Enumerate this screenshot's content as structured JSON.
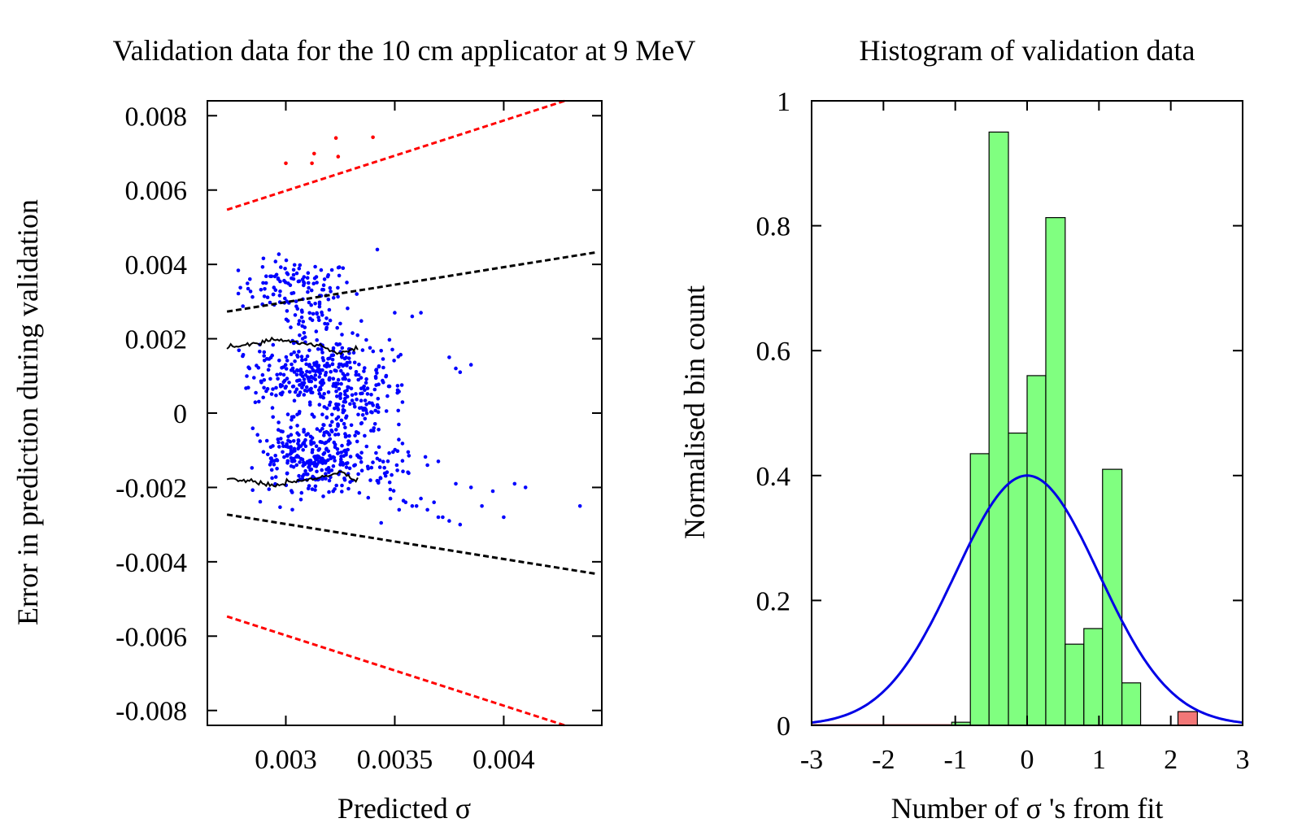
{
  "chart_data": [
    {
      "type": "scatter",
      "title": "Validation data for the 10 cm applicator at 9 MeV",
      "xlabel": "Predicted σ",
      "ylabel": "Error in prediction during validation",
      "xlim": [
        0.00264,
        0.00445
      ],
      "ylim": [
        -0.0084,
        0.0084
      ],
      "xticks": [
        {
          "value": 0.003,
          "label": "0.003"
        },
        {
          "value": 0.0035,
          "label": "0.0035"
        },
        {
          "value": 0.004,
          "label": "0.004"
        }
      ],
      "yticks": [
        {
          "value": 0.008,
          "label": "0.008"
        },
        {
          "value": 0.006,
          "label": "0.006"
        },
        {
          "value": 0.004,
          "label": "0.004"
        },
        {
          "value": 0.002,
          "label": "0.002"
        },
        {
          "value": 0,
          "label": "0"
        },
        {
          "value": -0.002,
          "label": "-0.002"
        },
        {
          "value": -0.004,
          "label": "-0.004"
        },
        {
          "value": -0.006,
          "label": "-0.006"
        },
        {
          "value": -0.008,
          "label": "-0.008"
        }
      ],
      "grid": false,
      "legend": "none",
      "colors": {
        "inliers": "#0000ff",
        "outliers": "#ff0000",
        "one_sigma_bounds": "#000000",
        "two_sigma_bounds": "#ff0000"
      },
      "bound_lines": [
        {
          "style": "dashed",
          "color": "#000000",
          "x": [
            0.00273,
            0.00443
          ],
          "y": [
            0.00273,
            0.00433
          ]
        },
        {
          "style": "dashed",
          "color": "#000000",
          "x": [
            0.00273,
            0.00443
          ],
          "y": [
            -0.00273,
            -0.00433
          ]
        },
        {
          "style": "dashed",
          "color": "#ff0000",
          "x": [
            0.00273,
            0.00428
          ],
          "y": [
            0.00547,
            0.0084
          ]
        },
        {
          "style": "dashed",
          "color": "#ff0000",
          "x": [
            0.00273,
            0.00428
          ],
          "y": [
            -0.00547,
            -0.0084
          ]
        }
      ],
      "running_rms": {
        "color": "#000000",
        "x": [
          0.00273,
          0.00285,
          0.00295,
          0.00305,
          0.00315,
          0.00325,
          0.00333
        ],
        "upper": [
          0.00178,
          0.00185,
          0.002,
          0.0019,
          0.00183,
          0.00158,
          0.00178
        ],
        "lower": [
          -0.00175,
          -0.00185,
          -0.00195,
          -0.00183,
          -0.00175,
          -0.0016,
          -0.0018
        ]
      },
      "outlier_points": {
        "x": [
          0.003,
          0.00312,
          0.00313,
          0.00323,
          0.00324,
          0.0034
        ],
        "y": [
          0.00672,
          0.00672,
          0.00698,
          0.0074,
          0.0069,
          0.00742
        ]
      },
      "scatter_clusters": [
        {
          "x_center": 0.00305,
          "x_spread": 0.00013,
          "y_center": 0.0034,
          "y_spread": 0.00035,
          "count": 110
        },
        {
          "x_center": 0.0031,
          "x_spread": 0.00013,
          "y_center": 0.00105,
          "y_spread": 0.00045,
          "count": 260
        },
        {
          "x_center": 0.0031,
          "x_spread": 0.00012,
          "y_center": -0.00125,
          "y_spread": 0.00045,
          "count": 270
        },
        {
          "x_center": 0.0033,
          "x_spread": 9e-05,
          "y_center": -0.0001,
          "y_spread": 0.0006,
          "count": 110
        },
        {
          "x_center": 0.0031,
          "x_spread": 0.00012,
          "y_center": 0.0024,
          "y_spread": 0.0003,
          "count": 45
        },
        {
          "x_center": 0.00345,
          "x_spread": 8e-05,
          "y_center": 0.0008,
          "y_spread": 0.00055,
          "count": 50
        },
        {
          "x_center": 0.00345,
          "x_spread": 8e-05,
          "y_center": -0.0015,
          "y_spread": 0.00045,
          "count": 45
        }
      ],
      "sparse_points": {
        "x": [
          0.00355,
          0.00358,
          0.0036,
          0.00362,
          0.00365,
          0.00368,
          0.0037,
          0.00372,
          0.00375,
          0.00378,
          0.0038,
          0.00385,
          0.0039,
          0.00395,
          0.004,
          0.00405,
          0.0041,
          0.00435,
          0.00358,
          0.00362,
          0.00375,
          0.00378,
          0.0038,
          0.00385,
          0.00348,
          0.00352,
          0.00365,
          0.0037,
          0.00342,
          0.0035
        ],
        "y": [
          -0.0024,
          -0.0025,
          -0.0025,
          -0.0023,
          -0.0026,
          -0.0024,
          -0.0028,
          -0.0028,
          -0.0029,
          -0.0019,
          -0.003,
          -0.002,
          -0.0025,
          -0.0021,
          -0.0028,
          -0.0019,
          -0.002,
          -0.0025,
          0.0026,
          0.0027,
          0.0015,
          0.0012,
          0.0011,
          0.0013,
          -0.0023,
          -0.0026,
          -0.0014,
          -0.0013,
          0.0044,
          0.0027
        ]
      }
    },
    {
      "type": "bar",
      "title": "Histogram of validation data",
      "xlabel": "Number of σ 's from fit",
      "ylabel": "Normalised bin count",
      "xlim": [
        -3,
        3
      ],
      "ylim": [
        0,
        1
      ],
      "xticks": [
        {
          "value": -3,
          "label": "-3"
        },
        {
          "value": -2,
          "label": "-2"
        },
        {
          "value": -1,
          "label": "-1"
        },
        {
          "value": 0,
          "label": "0"
        },
        {
          "value": 1,
          "label": "1"
        },
        {
          "value": 2,
          "label": "2"
        },
        {
          "value": 3,
          "label": "3"
        }
      ],
      "yticks": [
        {
          "value": 0,
          "label": "0"
        },
        {
          "value": 0.2,
          "label": "0.2"
        },
        {
          "value": 0.4,
          "label": "0.4"
        },
        {
          "value": 0.6,
          "label": "0.6"
        },
        {
          "value": 0.8,
          "label": "0.8"
        },
        {
          "value": 1,
          "label": "1"
        }
      ],
      "grid": false,
      "legend": "none",
      "colors": {
        "bar_inlier": "#80ff80",
        "bar_outlier": "#f27777",
        "bar_edge": "#000000",
        "curve": "#0000e6"
      },
      "bins": [
        {
          "left": -1.05,
          "right": -0.79,
          "value": 0.005,
          "group": "inlier"
        },
        {
          "left": -0.79,
          "right": -0.53,
          "value": 0.435,
          "group": "inlier"
        },
        {
          "left": -0.53,
          "right": -0.26,
          "value": 0.95,
          "group": "inlier"
        },
        {
          "left": -0.26,
          "right": 0.0,
          "value": 0.468,
          "group": "inlier"
        },
        {
          "left": 0.0,
          "right": 0.26,
          "value": 0.56,
          "group": "inlier"
        },
        {
          "left": 0.26,
          "right": 0.53,
          "value": 0.813,
          "group": "inlier"
        },
        {
          "left": 0.53,
          "right": 0.79,
          "value": 0.13,
          "group": "inlier"
        },
        {
          "left": 0.79,
          "right": 1.05,
          "value": 0.155,
          "group": "inlier"
        },
        {
          "left": 1.05,
          "right": 1.32,
          "value": 0.41,
          "group": "inlier"
        },
        {
          "left": 1.32,
          "right": 1.58,
          "value": 0.068,
          "group": "inlier"
        },
        {
          "left": 2.1,
          "right": 2.37,
          "value": 0.022,
          "group": "outlier"
        }
      ],
      "curve": {
        "kind": "standard normal pdf",
        "mean": 0,
        "sigma": 1,
        "peak": 0.4
      }
    }
  ]
}
